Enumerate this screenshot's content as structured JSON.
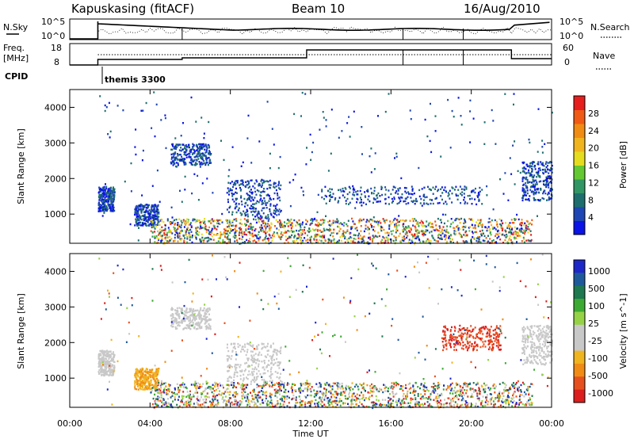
{
  "header": {
    "station": "Kapuskasing (fitACF)",
    "beam": "Beam 10",
    "date": "16/Aug/2010"
  },
  "nsky_panel": {
    "left_label": "N.Sky",
    "left_ticks": [
      "10^5",
      "10^0"
    ],
    "right_label": "N.Search",
    "right_ticks": [
      "10^5",
      "10^0"
    ]
  },
  "freq_panel": {
    "left_label_1": "Freq.",
    "left_label_2": "[MHz]",
    "left_ticks": [
      "18",
      "8"
    ],
    "right_label": "Nave",
    "right_ticks": [
      "60",
      "0"
    ]
  },
  "cpid": {
    "label": "CPID",
    "mode": "themis 3300"
  },
  "colors": {
    "power_scale": [
      "#0a14e6",
      "#1e46b4",
      "#1e6e6e",
      "#329664",
      "#64c832",
      "#e6dc1e",
      "#f0b41e",
      "#f08c14",
      "#f05a14",
      "#e61e1e"
    ],
    "velocity_scale": [
      "#1e28c8",
      "#1e5a9b",
      "#1e7850",
      "#3caa32",
      "#96d246",
      "#c8c8c8",
      "#c8c8c8",
      "#f0b41e",
      "#f08c14",
      "#e6501e",
      "#dc1e1e"
    ]
  },
  "chart_data": [
    {
      "type": "heatmap",
      "title": "",
      "quantity": "Power",
      "xlabel": "",
      "ylabel": "Slant Range [km]",
      "x_range": [
        "00:00",
        "24:00"
      ],
      "ylim": [
        180,
        4500
      ],
      "y_ticks": [
        "1000",
        "2000",
        "3000",
        "4000"
      ],
      "colorbar": {
        "label": "Power [dB]",
        "range": [
          0,
          32
        ],
        "ticks": [
          "4",
          "8",
          "12",
          "16",
          "20",
          "24",
          "28"
        ]
      },
      "regions": [
        {
          "t_start_h": 1.4,
          "t_end_h": 2.2,
          "r_min_km": 1100,
          "r_max_km": 1800,
          "db": 6
        },
        {
          "t_start_h": 3.2,
          "t_end_h": 4.4,
          "r_min_km": 700,
          "r_max_km": 1300,
          "db": 6
        },
        {
          "t_start_h": 5.0,
          "t_end_h": 7.0,
          "r_min_km": 2400,
          "r_max_km": 3000,
          "db": 4
        },
        {
          "t_start_h": 7.8,
          "t_end_h": 10.5,
          "r_min_km": 900,
          "r_max_km": 2000,
          "db": 5
        },
        {
          "t_start_h": 4.0,
          "t_end_h": 23.0,
          "r_min_km": 200,
          "r_max_km": 900,
          "db": 16
        },
        {
          "t_start_h": 12.5,
          "t_end_h": 20.5,
          "r_min_km": 1300,
          "r_max_km": 1800,
          "db": 5
        },
        {
          "t_start_h": 22.5,
          "t_end_h": 24.0,
          "r_min_km": 1400,
          "r_max_km": 2500,
          "db": 4
        }
      ]
    },
    {
      "type": "heatmap",
      "title": "",
      "quantity": "Velocity",
      "xlabel": "Time UT",
      "ylabel": "Slant Range [km]",
      "x_range": [
        "00:00",
        "24:00"
      ],
      "x_ticks": [
        "00:00",
        "04:00",
        "08:00",
        "12:00",
        "16:00",
        "20:00",
        "00:00"
      ],
      "ylim": [
        180,
        4500
      ],
      "y_ticks": [
        "1000",
        "2000",
        "3000",
        "4000"
      ],
      "colorbar": {
        "label": "Velocity [m s^-1]",
        "ticks": [
          "1000",
          "500",
          "100",
          "25",
          "-25",
          "-100",
          "-500",
          "-1000"
        ]
      },
      "regions": [
        {
          "t_start_h": 1.4,
          "t_end_h": 2.2,
          "r_min_km": 1100,
          "r_max_km": 1800,
          "velocity": 0
        },
        {
          "t_start_h": 3.2,
          "t_end_h": 4.4,
          "r_min_km": 700,
          "r_max_km": 1300,
          "velocity": -150
        },
        {
          "t_start_h": 5.0,
          "t_end_h": 7.0,
          "r_min_km": 2400,
          "r_max_km": 3000,
          "velocity": 0
        },
        {
          "t_start_h": 7.8,
          "t_end_h": 10.5,
          "r_min_km": 900,
          "r_max_km": 2000,
          "velocity": 0
        },
        {
          "t_start_h": 4.0,
          "t_end_h": 23.0,
          "r_min_km": 200,
          "r_max_km": 900,
          "velocity": 0
        },
        {
          "t_start_h": 18.5,
          "t_end_h": 21.5,
          "r_min_km": 1800,
          "r_max_km": 2500,
          "velocity": -300
        },
        {
          "t_start_h": 22.5,
          "t_end_h": 24.0,
          "r_min_km": 1400,
          "r_max_km": 2500,
          "velocity": 0
        }
      ]
    }
  ]
}
